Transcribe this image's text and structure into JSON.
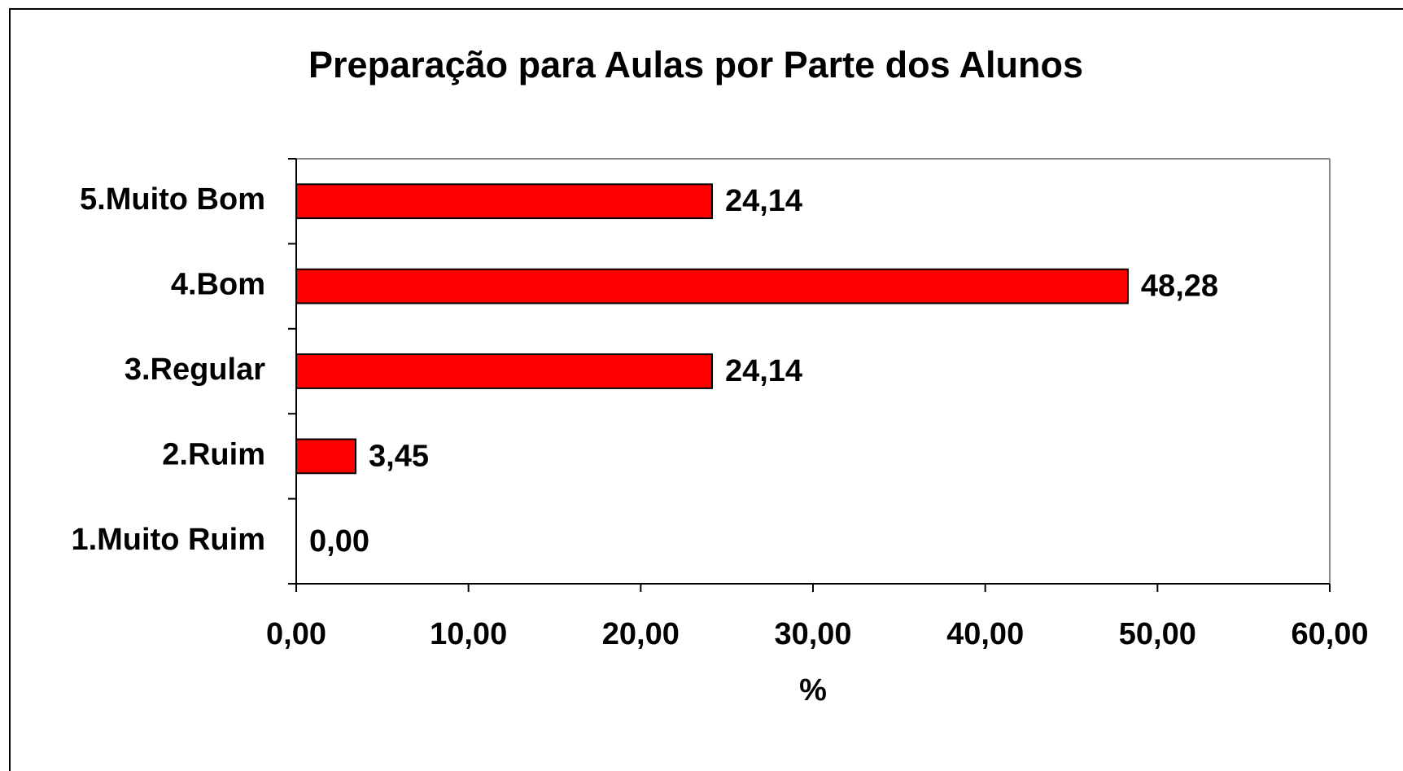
{
  "chart_data": {
    "type": "bar",
    "orientation": "horizontal",
    "title": "Preparação para Aulas  por Parte dos Alunos",
    "categories": [
      "5.Muito Bom",
      "4.Bom",
      "3.Regular",
      "2.Ruim",
      "1.Muito Ruim"
    ],
    "values": [
      24.14,
      48.28,
      24.14,
      3.45,
      0
    ],
    "value_labels": [
      "24,14",
      "48,28",
      "24,14",
      "3,45",
      "0,00"
    ],
    "color": "#ff0000",
    "xlabel": "%",
    "xlim": [
      0,
      60
    ],
    "xticks": [
      {
        "value": 0,
        "label": "0,00"
      },
      {
        "value": 10,
        "label": "10,00"
      },
      {
        "value": 20,
        "label": "20,00"
      },
      {
        "value": 30,
        "label": "30,00"
      },
      {
        "value": 40,
        "label": "40,00"
      },
      {
        "value": 50,
        "label": "50,00"
      },
      {
        "value": 60,
        "label": "60,00"
      }
    ],
    "grid": false
  }
}
